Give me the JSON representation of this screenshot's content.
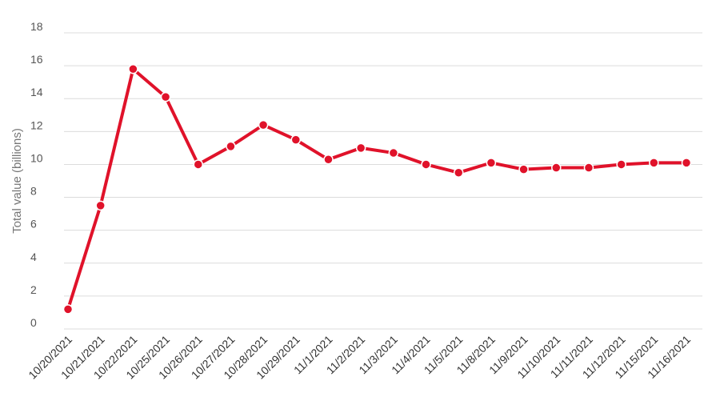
{
  "chart_data": {
    "type": "line",
    "title": "",
    "xlabel": "",
    "ylabel": "Total value (billions)",
    "categories": [
      "10/20/2021",
      "10/21/2021",
      "10/22/2021",
      "10/25/2021",
      "10/26/2021",
      "10/27/2021",
      "10/28/2021",
      "10/29/2021",
      "11/1/2021",
      "11/2/2021",
      "11/3/2021",
      "11/4/2021",
      "11/5/2021",
      "11/8/2021",
      "11/9/2021",
      "11/10/2021",
      "11/11/2021",
      "11/12/2021",
      "11/15/2021",
      "11/16/2021"
    ],
    "series": [
      {
        "values": [
          1.2,
          7.5,
          15.8,
          14.1,
          10.0,
          11.1,
          12.4,
          11.5,
          10.3,
          11.0,
          10.7,
          10.0,
          9.5,
          10.1,
          9.7,
          9.8,
          9.8,
          10.0,
          10.1,
          10.1
        ]
      }
    ],
    "ylim": [
      0,
      18
    ],
    "yticks": [
      0,
      2,
      4,
      6,
      8,
      10,
      12,
      14,
      16,
      18
    ],
    "grid": true,
    "color": "#e0122a"
  }
}
